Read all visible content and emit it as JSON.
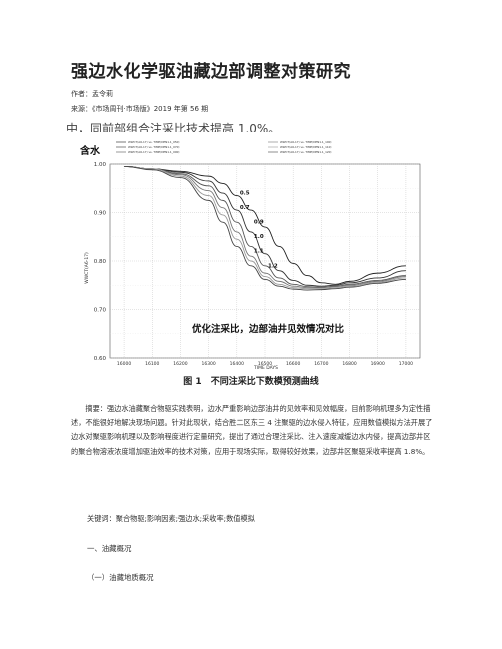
{
  "doc": {
    "title": "强边水化学驱油藏边部调整对策研究",
    "author": "作者：孟令莉",
    "source": "来源：《市场周刊·市场版》2019 年第 56 期",
    "cut_line": "中，同前部组合注采比技术提高 1.0%。",
    "figure_caption": "图 1　不同注采比下数模预测曲线",
    "abstract": "摘要：强边水油藏聚合物驱实践表明，边水严重影响边部油井的见效率和见效幅度，目前影响机理多为定性描述，不能很好地解决现场问题。针对此现状，结合胜二区东三 4 注聚驱的边水侵入特征，应用数值模拟方法开展了边水对聚驱影响机理以及影响程度进行定量研究，提出了通过合理注采比、注入速度减缓边水内侵，提高边部井区的聚合物溶液浓度增加驱油效率的技术对策，应用于现场实际，取得较好效果，边部井区聚驱采收率提高 1.8%。",
    "keywords": "关键词：聚合物驱;影响因素;强边水;采收率;数值模拟",
    "section1": "一、油藏概况",
    "section1_1": "（一）油藏地质概况"
  },
  "chart_data": {
    "type": "line",
    "title": "含水",
    "xlabel": "TIME  DAYS",
    "ylabel": "WWCT(A6-17)  ",
    "x_ticks": [
      16000,
      16100,
      16200,
      16300,
      16400,
      16500,
      16600,
      16700,
      16800,
      16900,
      17000
    ],
    "y_ticks": [
      "0.60",
      "0.70",
      "0.80",
      "0.90",
      "1.00"
    ],
    "xlim": [
      15950,
      17050
    ],
    "ylim": [
      0.6,
      1.0
    ],
    "overlay_text": "优化注采比，边部油井见效情况对比",
    "legend": [
      "WWCT(A6-17) vs. TIME(DEN1.1_050)",
      "WWCT(A6-17) vs. TIME(DEN1.1_070)",
      "WWCT(A6-17) vs. TIME(DEN1.1_090)",
      "WWCT(A6-17) vs. TIME(DEN1.1_100)",
      "WWCT(A6-17) vs. TIME(DEN1.1_110)",
      "WWCT(A6-17) vs. TIME(DEN1.1_120)"
    ],
    "series": [
      {
        "name": "0.5",
        "x": [
          16000,
          16100,
          16200,
          16300,
          16350,
          16400,
          16450,
          16500,
          16550,
          16600,
          16650,
          16700,
          16750,
          16800,
          16900,
          17000
        ],
        "values": [
          0.995,
          0.99,
          0.985,
          0.975,
          0.96,
          0.935,
          0.905,
          0.87,
          0.83,
          0.795,
          0.77,
          0.755,
          0.752,
          0.758,
          0.775,
          0.79
        ]
      },
      {
        "name": "0.7",
        "x": [
          16000,
          16100,
          16200,
          16300,
          16350,
          16400,
          16450,
          16500,
          16550,
          16600,
          16650,
          16700,
          16750,
          16800,
          16900,
          17000
        ],
        "values": [
          0.995,
          0.99,
          0.983,
          0.965,
          0.94,
          0.905,
          0.86,
          0.815,
          0.78,
          0.76,
          0.75,
          0.748,
          0.75,
          0.755,
          0.765,
          0.78
        ]
      },
      {
        "name": "0.9",
        "x": [
          16000,
          16100,
          16200,
          16300,
          16350,
          16400,
          16450,
          16500,
          16550,
          16600,
          16650,
          16700,
          16750,
          16800,
          16900,
          17000
        ],
        "values": [
          0.995,
          0.99,
          0.98,
          0.955,
          0.925,
          0.88,
          0.83,
          0.79,
          0.765,
          0.752,
          0.747,
          0.746,
          0.748,
          0.752,
          0.76,
          0.77
        ]
      },
      {
        "name": "1.0",
        "x": [
          16000,
          16100,
          16200,
          16300,
          16350,
          16400,
          16450,
          16500,
          16550,
          16600,
          16650,
          16700,
          16750,
          16800,
          16900,
          17000
        ],
        "values": [
          0.995,
          0.99,
          0.978,
          0.945,
          0.91,
          0.86,
          0.81,
          0.775,
          0.758,
          0.748,
          0.745,
          0.745,
          0.747,
          0.75,
          0.758,
          0.768
        ]
      },
      {
        "name": "1.1",
        "x": [
          16000,
          16100,
          16200,
          16300,
          16350,
          16400,
          16450,
          16500,
          16550,
          16600,
          16650,
          16700,
          16750,
          16800,
          16900,
          17000
        ],
        "values": [
          0.995,
          0.99,
          0.975,
          0.935,
          0.895,
          0.845,
          0.8,
          0.768,
          0.752,
          0.745,
          0.743,
          0.743,
          0.745,
          0.748,
          0.756,
          0.765
        ]
      },
      {
        "name": "1.2",
        "x": [
          16000,
          16100,
          16200,
          16300,
          16350,
          16400,
          16450,
          16500,
          16550,
          16600,
          16650,
          16700,
          16750,
          16800,
          16900,
          17000
        ],
        "values": [
          0.995,
          0.988,
          0.972,
          0.925,
          0.88,
          0.83,
          0.79,
          0.762,
          0.748,
          0.742,
          0.74,
          0.741,
          0.743,
          0.746,
          0.754,
          0.762
        ]
      }
    ],
    "series_colors": [
      "#222222",
      "#333333",
      "#555555",
      "#777777",
      "#999999",
      "#444444"
    ],
    "grid": true
  }
}
